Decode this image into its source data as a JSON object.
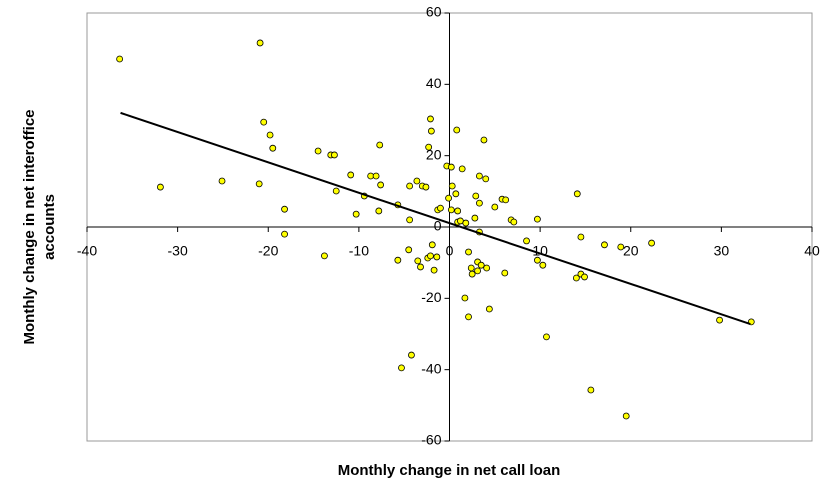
{
  "chart_data": {
    "type": "scatter",
    "xlabel": "Monthly change in net call loan",
    "ylabel": [
      "Monthly change in net interoffice",
      "accounts"
    ],
    "xlim": [
      -40,
      40
    ],
    "xticks": [
      -40,
      -30,
      -20,
      -10,
      0,
      10,
      20,
      30,
      40
    ],
    "ylim": [
      -60,
      60
    ],
    "yticks": [
      -60,
      -40,
      -20,
      0,
      20,
      40,
      60
    ],
    "series": [
      {
        "color": "#ffff00",
        "x": [
          -36.4,
          -31.9,
          -25.1,
          -21.0,
          -20.9,
          -20.5,
          -19.8,
          -19.5,
          -18.2,
          -18.2,
          -14.5,
          -13.8,
          -13.1,
          -12.7,
          -12.5,
          -10.9,
          -10.3,
          -9.4,
          -8.7,
          -8.1,
          -7.7,
          -7.8,
          -7.6,
          -5.7,
          -5.7,
          -5.3,
          -4.4,
          -4.4,
          -4.2,
          -4.5,
          -3.6,
          -3.5,
          -3.2,
          -3.0,
          -2.6,
          -2.4,
          -2.1,
          -1.9,
          -1.7,
          -1.4,
          -1.3,
          -1.0,
          -2.1,
          -2.0,
          -2.3,
          -0.3,
          0.2,
          0.3,
          -0.1,
          0.2,
          0.7,
          0.9,
          0.8,
          0.9,
          1.2,
          1.4,
          1.8,
          2.1,
          1.7,
          2.1,
          2.4,
          2.5,
          2.8,
          2.9,
          3.1,
          3.1,
          3.3,
          3.3,
          3.3,
          3.5,
          3.8,
          4.0,
          4.1,
          4.4,
          5.0,
          5.8,
          6.2,
          6.1,
          6.8,
          7.1,
          8.5,
          9.7,
          9.7,
          10.3,
          10.7,
          14.1,
          14.5,
          14.0,
          14.5,
          14.9,
          15.6,
          17.1,
          18.9,
          19.5,
          22.3,
          29.8,
          33.3
        ],
        "values": [
          47.1,
          11.2,
          12.9,
          12.1,
          51.6,
          29.4,
          25.8,
          22.1,
          5.0,
          -2.0,
          21.3,
          -8.1,
          20.2,
          20.2,
          10.1,
          14.6,
          3.6,
          8.7,
          14.3,
          14.3,
          23.0,
          4.5,
          11.8,
          6.2,
          -9.3,
          -39.5,
          2.0,
          11.5,
          -35.9,
          -6.4,
          12.9,
          -9.5,
          -11.2,
          11.5,
          11.2,
          -8.7,
          -8.1,
          -5.0,
          -12.1,
          -8.4,
          4.8,
          5.3,
          30.3,
          26.9,
          22.4,
          17.1,
          16.8,
          11.5,
          8.1,
          4.8,
          9.3,
          4.5,
          27.2,
          1.4,
          1.7,
          16.3,
          1.1,
          -7.0,
          -19.9,
          -25.2,
          -11.5,
          -13.2,
          2.5,
          8.7,
          -12.3,
          -9.8,
          6.7,
          -1.4,
          14.3,
          -10.7,
          24.4,
          13.5,
          -11.5,
          -23.0,
          5.6,
          7.8,
          7.6,
          -12.9,
          2.0,
          1.4,
          -3.9,
          2.2,
          -9.3,
          -10.7,
          -30.8,
          9.3,
          -2.8,
          -14.3,
          -13.2,
          -14.0,
          -45.7,
          -5.0,
          -5.6,
          -53.0,
          -4.5,
          -26.1,
          -26.6
        ]
      }
    ],
    "trendline": {
      "x": [
        -36.3,
        33.2
      ],
      "y": [
        32,
        -27.2
      ],
      "color": "#000000"
    }
  }
}
